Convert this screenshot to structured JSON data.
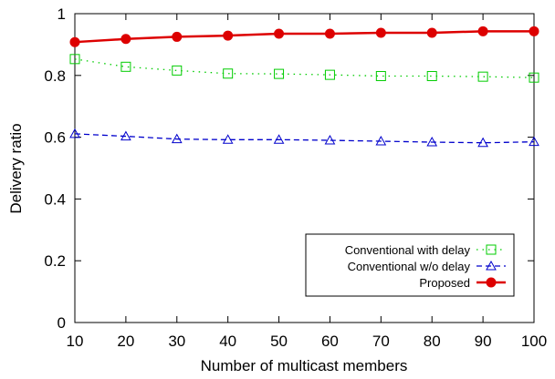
{
  "chart_data": {
    "type": "line",
    "xlabel": "Number of multicast members",
    "ylabel": "Delivery ratio",
    "xlim": [
      10,
      100
    ],
    "ylim": [
      0,
      1
    ],
    "x_ticks": [
      10,
      20,
      30,
      40,
      50,
      60,
      70,
      80,
      90,
      100
    ],
    "y_ticks": [
      "0",
      "0.2",
      "0.4",
      "0.6",
      "0.8",
      "1"
    ],
    "y_tick_values": [
      0,
      0.2,
      0.4,
      0.6,
      0.8,
      1
    ],
    "grid": false,
    "legend_position": "bottom-right",
    "x": [
      10,
      20,
      30,
      40,
      50,
      60,
      70,
      80,
      90,
      100
    ],
    "series": [
      {
        "name": "Conventional with delay",
        "values": [
          0.853,
          0.828,
          0.816,
          0.806,
          0.805,
          0.802,
          0.798,
          0.798,
          0.796,
          0.793
        ],
        "color": "#00cc00",
        "line_style": "dotted",
        "marker": "open-square"
      },
      {
        "name": "Conventional w/o delay",
        "values": [
          0.611,
          0.603,
          0.594,
          0.592,
          0.592,
          0.59,
          0.587,
          0.584,
          0.582,
          0.585
        ],
        "color": "#0000cc",
        "line_style": "dashed",
        "marker": "open-triangle"
      },
      {
        "name": "Proposed",
        "values": [
          0.908,
          0.918,
          0.925,
          0.929,
          0.935,
          0.935,
          0.938,
          0.938,
          0.943,
          0.943
        ],
        "color": "#dd0000",
        "line_style": "solid",
        "marker": "filled-circle"
      }
    ]
  }
}
